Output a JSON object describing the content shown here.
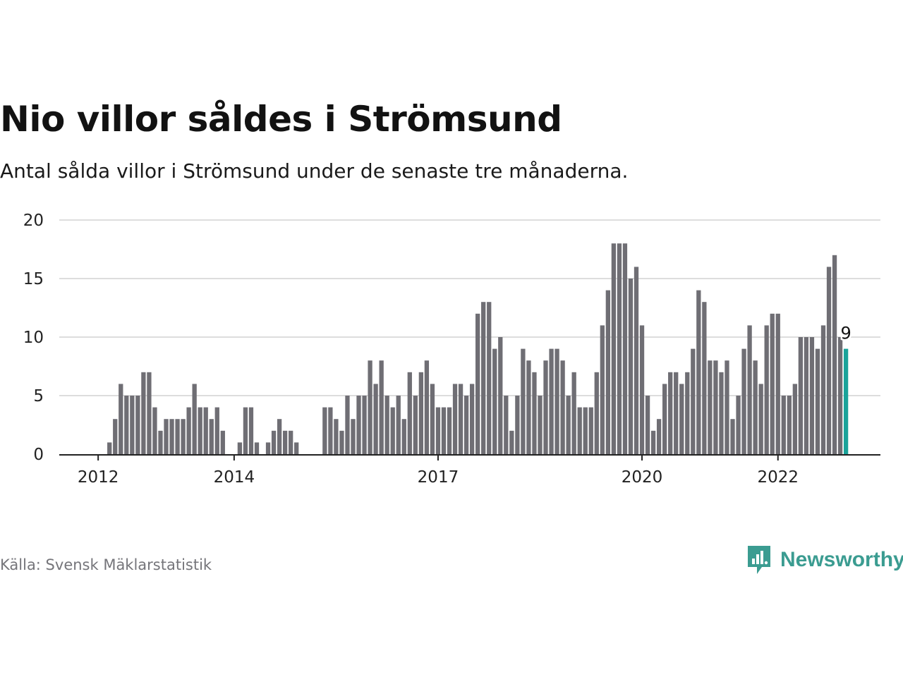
{
  "header": {
    "title": "Nio villor såldes i Strömsund",
    "subtitle": "Antal sålda villor i Strömsund under de senaste tre månaderna."
  },
  "footer": {
    "source": "Källa: Svensk Mäklarstatistik",
    "brand": "Newsworthy",
    "brand_icon": "bar-chart-speech-bubble-icon"
  },
  "colors": {
    "bar": "#6f6e74",
    "highlight": "#1aa39a",
    "grid": "#dddddd",
    "axis": "#222222",
    "brand": "#3b9c91"
  },
  "chart_data": {
    "type": "bar",
    "x_start": "2012-01",
    "x_unit": "month",
    "xticks": [
      "2012",
      "2014",
      "2017",
      "2020",
      "2022"
    ],
    "yticks": [
      "0",
      "5",
      "10",
      "15",
      "20"
    ],
    "ylim": [
      0,
      20
    ],
    "grid": true,
    "highlight_last": true,
    "last_value_label": "9",
    "values": [
      0,
      0,
      1,
      3,
      6,
      5,
      5,
      5,
      7,
      7,
      4,
      2,
      3,
      3,
      3,
      3,
      4,
      6,
      4,
      4,
      3,
      4,
      2,
      0,
      0,
      1,
      4,
      4,
      1,
      0,
      1,
      2,
      3,
      2,
      2,
      1,
      0,
      0,
      0,
      0,
      4,
      4,
      3,
      2,
      5,
      3,
      5,
      5,
      8,
      6,
      8,
      5,
      4,
      5,
      3,
      7,
      5,
      7,
      8,
      6,
      4,
      4,
      4,
      6,
      6,
      5,
      6,
      12,
      13,
      13,
      9,
      10,
      5,
      2,
      5,
      9,
      8,
      7,
      5,
      8,
      9,
      9,
      8,
      5,
      7,
      4,
      4,
      4,
      7,
      11,
      14,
      18,
      18,
      18,
      15,
      16,
      11,
      5,
      2,
      3,
      6,
      7,
      7,
      6,
      7,
      9,
      14,
      13,
      8,
      8,
      7,
      8,
      3,
      5,
      9,
      11,
      8,
      6,
      11,
      12,
      12,
      5,
      5,
      6,
      10,
      10,
      10,
      9,
      11,
      16,
      17,
      10,
      9
    ]
  }
}
